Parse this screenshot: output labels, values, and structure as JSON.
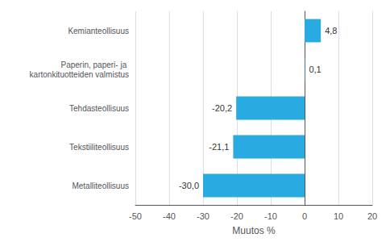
{
  "chart_data": {
    "type": "bar",
    "orientation": "horizontal",
    "categories": [
      "Metalliteollisuus",
      "Tekstiiliteollisuus",
      "Tehdasteollisuus",
      "Paperin, paperi- ja kartonkituotteiden valmistus",
      "Kemianteollisuus"
    ],
    "values": [
      -30.0,
      -21.1,
      -20.2,
      0.1,
      4.8
    ],
    "value_labels": [
      "-30,0",
      "-21,1",
      "-20,2",
      "0,1",
      "4,8"
    ],
    "data_labels": true,
    "color": "#29abe2",
    "xlabel": "Muutos %",
    "xlim": [
      -50,
      20
    ],
    "xticks": [
      -50,
      -40,
      -30,
      -20,
      -10,
      0,
      10,
      20
    ],
    "grid": true
  }
}
